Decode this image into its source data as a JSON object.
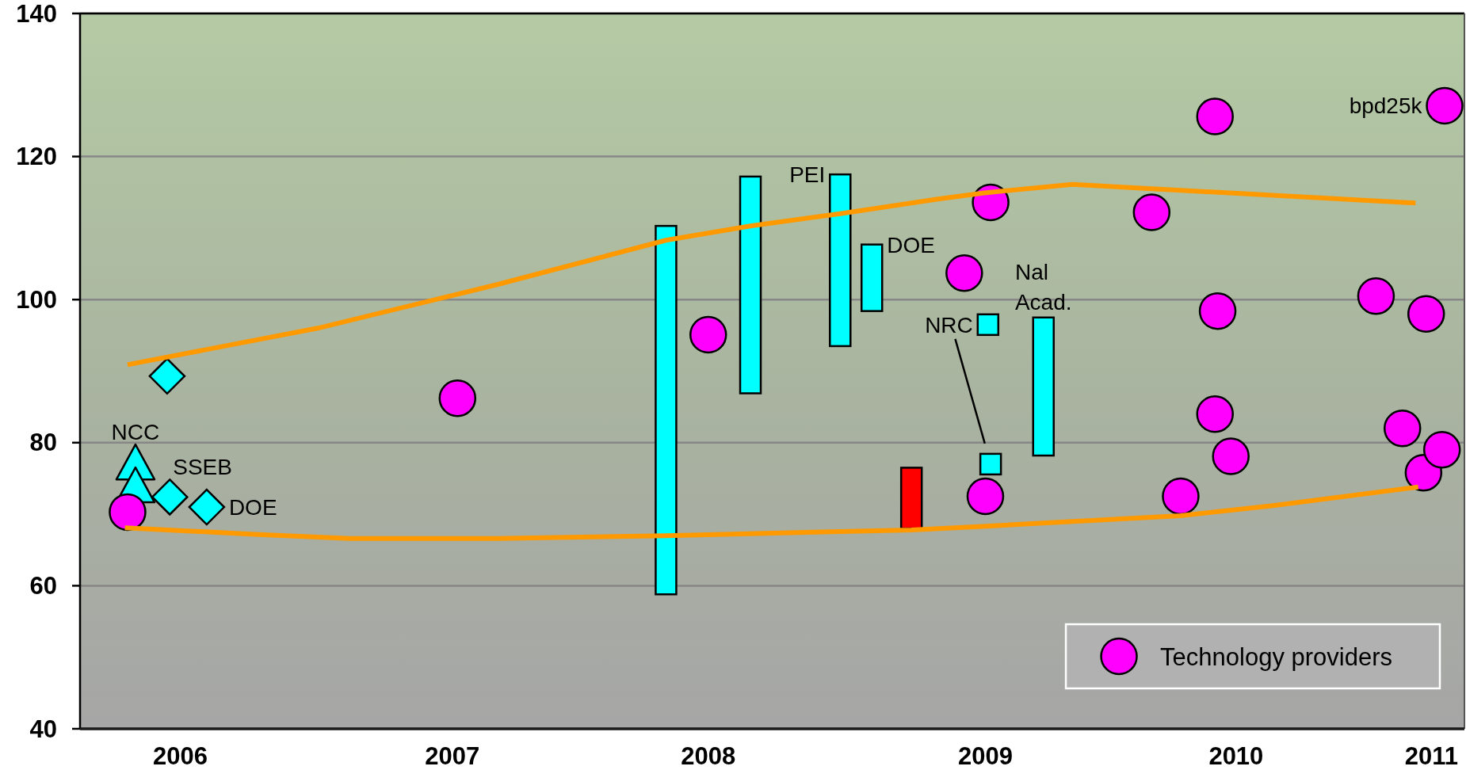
{
  "chart_data": {
    "type": "scatter",
    "xlim": [
      2005.62,
      2010.865
    ],
    "xticks": [
      2006,
      {
        "value": 2007.03,
        "label": "2007"
      },
      2008,
      {
        "value": 2009.05,
        "label": "2009"
      },
      2010,
      {
        "value": 2010.74,
        "label": "2011"
      }
    ],
    "ylim": [
      40,
      140
    ],
    "yticks": [
      40,
      60,
      80,
      100,
      120,
      140
    ],
    "grid": "y",
    "legend": "bottom right",
    "series": [
      {
        "type": "bar",
        "color": "#00ffff",
        "x": [
          2007.84,
          2008.16,
          2008.5,
          2008.62,
          2009.27
        ],
        "base": [
          58.8,
          86.9,
          93.5,
          98.4,
          78.2
        ],
        "values": [
          51.5,
          30.3,
          24.0,
          9.3,
          19.3
        ]
      },
      {
        "type": "bar",
        "color": "#ff0000",
        "x": [
          2008.77
        ],
        "base": [
          68.0
        ],
        "values": [
          8.5
        ]
      },
      {
        "type": "scatter",
        "marker": "triangle",
        "color": "#00ffff",
        "x": [
          2005.83,
          2005.83
        ],
        "values": [
          77.3,
          74.1
        ]
      },
      {
        "type": "scatter",
        "marker": "diamond",
        "color": "#00ffff",
        "x": [
          2005.95,
          2005.96,
          2006.1
        ],
        "values": [
          89.3,
          72.4,
          71.0
        ]
      },
      {
        "type": "scatter",
        "marker": "square",
        "color": "#00ffff",
        "x": [
          2009.06,
          2009.07
        ],
        "values": [
          96.5,
          77.0
        ]
      },
      {
        "type": "scatter",
        "marker": "circle",
        "name": "Technology providers",
        "color": "#ff00ff",
        "x": [
          2005.8,
          2007.05,
          2008.0,
          2008.97,
          2009.05,
          2009.07,
          2009.68,
          2009.79,
          2009.92,
          2009.92,
          2009.93,
          2009.98,
          2010.53,
          2010.63,
          2010.71,
          2010.72,
          2010.78,
          2010.79
        ],
        "values": [
          70.3,
          86.2,
          95.1,
          103.7,
          72.5,
          113.6,
          112.2,
          72.5,
          84.0,
          125.6,
          98.4,
          78.1,
          100.5,
          82.0,
          75.8,
          98.0,
          79.0,
          127.1
        ]
      },
      {
        "type": "line",
        "color": "#ff9900",
        "x": [
          2005.8,
          2006.52,
          2007.2,
          2007.84,
          2008.16,
          2008.5,
          2008.86,
          2009.04,
          2009.38,
          2010.68
        ],
        "values": [
          90.9,
          96.0,
          102.1,
          108.3,
          110.3,
          112.0,
          114.0,
          114.9,
          116.1,
          113.5
        ]
      },
      {
        "type": "line",
        "color": "#ff9900",
        "x": [
          2005.79,
          2006.28,
          2006.64,
          2007.2,
          2007.84,
          2008.77,
          2009.04,
          2009.79,
          2010.14,
          2010.69
        ],
        "values": [
          68.1,
          67.2,
          66.6,
          66.6,
          67.0,
          67.8,
          68.3,
          69.8,
          71.2,
          73.8
        ]
      }
    ],
    "annotations": [
      {
        "text": "NCC",
        "x": 2005.83,
        "y": 77.3
      },
      {
        "text": "SSEB",
        "x": 2005.96,
        "y": 72.4
      },
      {
        "text": "DOE",
        "x": 2006.1,
        "y": 71.0
      },
      {
        "text": "PEI",
        "x": 2008.5,
        "y": 117.5
      },
      {
        "text": "DOE",
        "x": 2008.62,
        "y": 107.7
      },
      {
        "text": "NRC",
        "x": 2009.06,
        "y": 96.5
      },
      {
        "text": "Nal\nAcad.",
        "x": 2009.27,
        "y": 97.5
      },
      {
        "text": "bpd25k",
        "x": 2010.79,
        "y": 127.1
      }
    ]
  }
}
